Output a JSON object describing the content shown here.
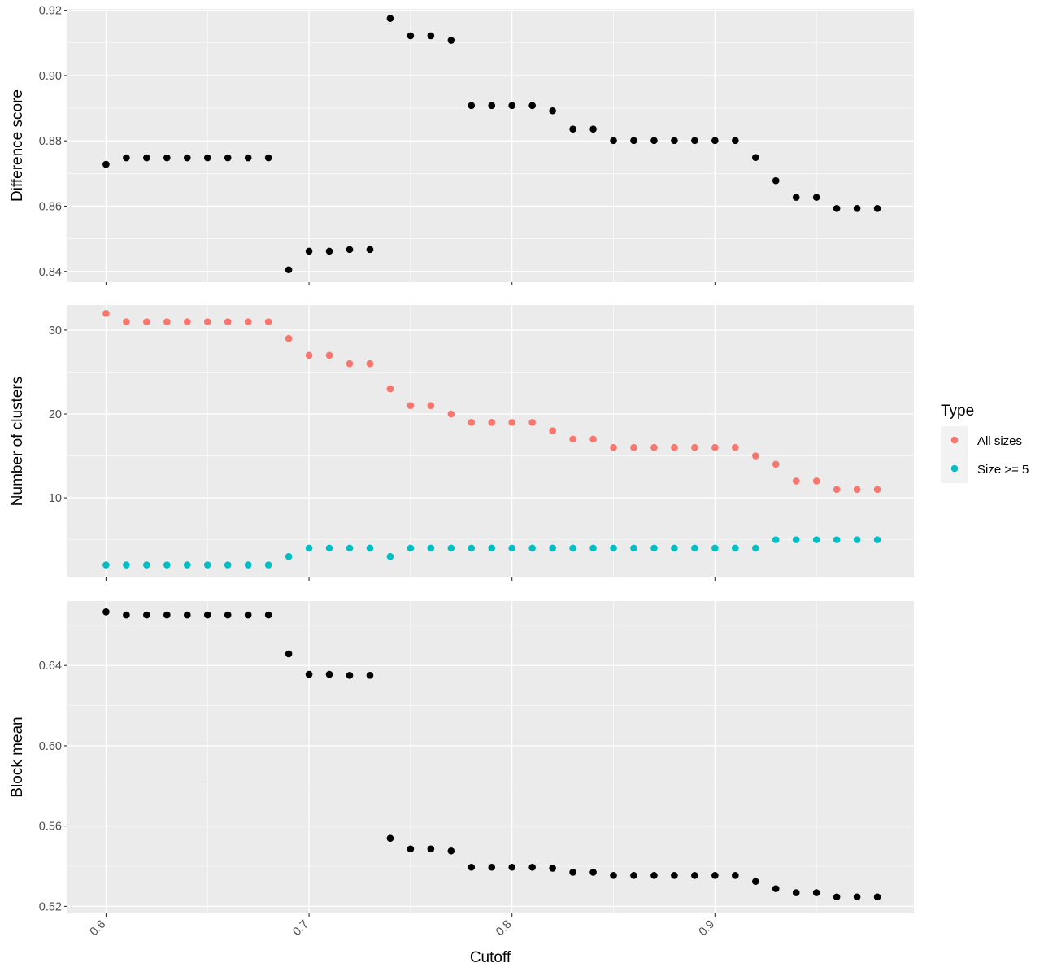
{
  "chart_data": {
    "type": "scatter",
    "xlabel": "Cutoff",
    "x_ticks": [
      0.6,
      0.7,
      0.8,
      0.9
    ],
    "xlim": [
      0.581,
      0.998
    ],
    "x": [
      0.6,
      0.61,
      0.62,
      0.63,
      0.64,
      0.65,
      0.66,
      0.67,
      0.68,
      0.69,
      0.7,
      0.71,
      0.72,
      0.73,
      0.74,
      0.75,
      0.76,
      0.77,
      0.78,
      0.79,
      0.8,
      0.81,
      0.82,
      0.83,
      0.84,
      0.85,
      0.86,
      0.87,
      0.88,
      0.89,
      0.9,
      0.91,
      0.92,
      0.93,
      0.94,
      0.95,
      0.96,
      0.97,
      0.98
    ],
    "panels": [
      {
        "ylabel": "Difference score",
        "ylim": [
          0.8367,
          0.9204
        ],
        "y_ticks": [
          0.84,
          0.86,
          0.88,
          0.9,
          0.92
        ],
        "y_tick_labels": [
          "0.84",
          "0.86",
          "0.88",
          "0.90",
          "0.92"
        ],
        "series": [
          {
            "color": "#000000",
            "values": [
              0.8728,
              0.8748,
              0.8748,
              0.8748,
              0.8748,
              0.8748,
              0.8748,
              0.8748,
              0.8748,
              0.8405,
              0.8462,
              0.8462,
              0.8467,
              0.8467,
              0.9175,
              0.9122,
              0.9122,
              0.9108,
              0.8908,
              0.8908,
              0.8908,
              0.8908,
              0.8892,
              0.8836,
              0.8836,
              0.8801,
              0.8801,
              0.8801,
              0.8801,
              0.8801,
              0.8801,
              0.8801,
              0.8749,
              0.8678,
              0.8627,
              0.8627,
              0.8593,
              0.8593,
              0.8593
            ]
          }
        ]
      },
      {
        "ylabel": "Number of clusters",
        "ylim": [
          0.5,
          33.0
        ],
        "y_ticks": [
          10,
          20,
          30
        ],
        "y_tick_labels": [
          "10",
          "20",
          "30"
        ],
        "series": [
          {
            "name": "All sizes",
            "color": "#F8766D",
            "values": [
              32,
              31,
              31,
              31,
              31,
              31,
              31,
              31,
              31,
              29,
              27,
              27,
              26,
              26,
              23,
              21,
              21,
              20,
              19,
              19,
              19,
              19,
              18,
              17,
              17,
              16,
              16,
              16,
              16,
              16,
              16,
              16,
              15,
              14,
              12,
              12,
              11,
              11,
              11
            ]
          },
          {
            "name": "Size >= 5",
            "color": "#00BFC4",
            "values": [
              2,
              2,
              2,
              2,
              2,
              2,
              2,
              2,
              2,
              3,
              4,
              4,
              4,
              4,
              3,
              4,
              4,
              4,
              4,
              4,
              4,
              4,
              4,
              4,
              4,
              4,
              4,
              4,
              4,
              4,
              4,
              4,
              4,
              5,
              5,
              5,
              5,
              5,
              5
            ]
          }
        ]
      },
      {
        "ylabel": "Block mean",
        "ylim": [
          0.5165,
          0.6721
        ],
        "y_ticks": [
          0.52,
          0.56,
          0.6,
          0.64
        ],
        "y_tick_labels": [
          "0.52",
          "0.56",
          "0.60",
          "0.64"
        ],
        "series": [
          {
            "color": "#000000",
            "values": [
              0.6667,
              0.6652,
              0.6652,
              0.6652,
              0.6652,
              0.6652,
              0.6652,
              0.6652,
              0.6652,
              0.6458,
              0.6356,
              0.6356,
              0.6351,
              0.6351,
              0.5539,
              0.5486,
              0.5486,
              0.5476,
              0.5395,
              0.5395,
              0.5395,
              0.5395,
              0.539,
              0.537,
              0.537,
              0.5354,
              0.5354,
              0.5354,
              0.5354,
              0.5354,
              0.5354,
              0.5354,
              0.5324,
              0.5288,
              0.5268,
              0.5268,
              0.5247,
              0.5247,
              0.5247
            ]
          }
        ]
      }
    ],
    "legend": {
      "title": "Type",
      "position": "right",
      "items": [
        {
          "label": "All sizes",
          "color": "#F8766D"
        },
        {
          "label": "Size >= 5",
          "color": "#00BFC4"
        }
      ]
    },
    "grid": true
  }
}
